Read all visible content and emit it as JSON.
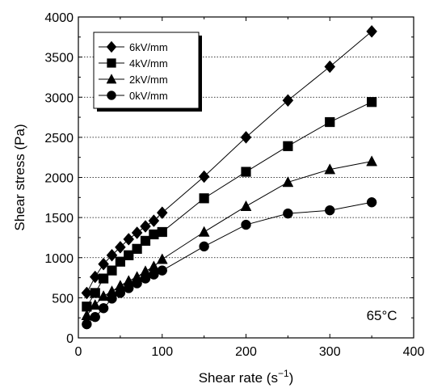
{
  "chart_data": {
    "type": "line",
    "title": "",
    "xlabel": "Shear rate (s",
    "xlabel_sup": "−1",
    "xlabel_close": ")",
    "ylabel": "Shear stress (Pa)",
    "xlim": [
      0,
      400
    ],
    "ylim": [
      0,
      4000
    ],
    "x_ticks": [
      0,
      100,
      200,
      300,
      400
    ],
    "y_ticks": [
      0,
      500,
      1000,
      1500,
      2000,
      2500,
      3000,
      3500,
      4000
    ],
    "y_gridlines": [
      500,
      1000,
      1500,
      2000,
      2500,
      3000,
      3500
    ],
    "grid": "horizontal dotted",
    "legend_position": "top-left",
    "annotation": "65°C",
    "series": [
      {
        "name": "6kV/mm",
        "marker": "diamond",
        "x": [
          10,
          20,
          30,
          40,
          50,
          60,
          70,
          80,
          90,
          100,
          150,
          200,
          250,
          300,
          350
        ],
        "y": [
          560,
          760,
          920,
          1030,
          1130,
          1230,
          1310,
          1390,
          1460,
          1560,
          2010,
          2500,
          2960,
          3380,
          3820
        ]
      },
      {
        "name": "4kV/mm",
        "marker": "square",
        "x": [
          10,
          20,
          30,
          40,
          50,
          60,
          70,
          80,
          90,
          100,
          150,
          200,
          250,
          300,
          350
        ],
        "y": [
          390,
          560,
          740,
          840,
          950,
          1030,
          1110,
          1210,
          1290,
          1320,
          1740,
          2070,
          2390,
          2690,
          2940
        ]
      },
      {
        "name": "2kV/mm",
        "marker": "triangle",
        "x": [
          10,
          20,
          30,
          40,
          50,
          60,
          70,
          80,
          90,
          100,
          150,
          200,
          250,
          300,
          350
        ],
        "y": [
          280,
          410,
          520,
          580,
          650,
          710,
          760,
          830,
          890,
          980,
          1320,
          1640,
          1940,
          2100,
          2200
        ]
      },
      {
        "name": "0kV/mm",
        "marker": "circle",
        "x": [
          10,
          20,
          30,
          40,
          50,
          60,
          70,
          80,
          90,
          100,
          150,
          200,
          250,
          300,
          350
        ],
        "y": [
          170,
          260,
          370,
          490,
          560,
          620,
          680,
          740,
          790,
          840,
          1140,
          1410,
          1550,
          1590,
          1690
        ]
      }
    ]
  }
}
